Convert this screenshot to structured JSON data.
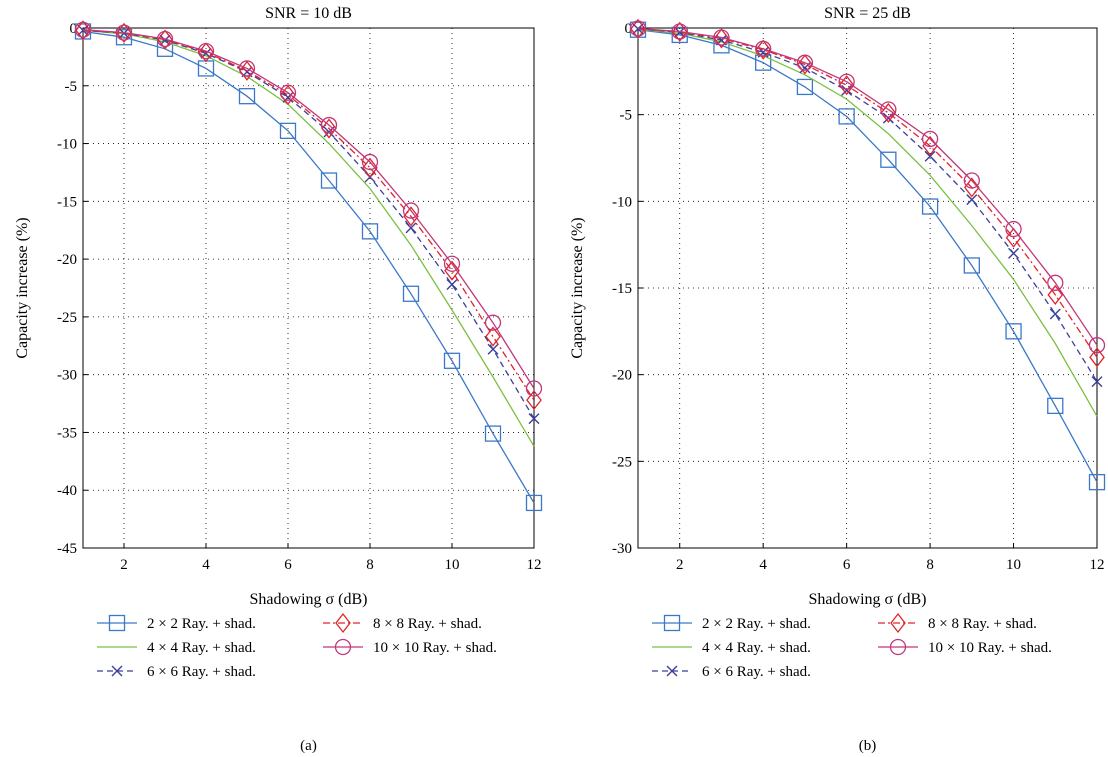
{
  "chart_data": [
    {
      "type": "line",
      "title": "SNR = 10 dB",
      "caption": "(a)",
      "xlabel": "Shadowing σ (dB)",
      "ylabel": "Capacity increase (%)",
      "xlim": [
        1,
        12
      ],
      "ylim": [
        -45,
        0
      ],
      "xticks": [
        2,
        4,
        6,
        8,
        10,
        12
      ],
      "yticks": [
        0,
        -5,
        -10,
        -15,
        -20,
        -25,
        -30,
        -35,
        -40,
        -45
      ],
      "grid": "dotted",
      "legend_position": "below",
      "x": [
        1,
        2,
        3,
        4,
        5,
        6,
        7,
        8,
        9,
        10,
        11,
        12
      ],
      "series": [
        {
          "name": "2 × 2 Ray. + shad.",
          "color": "#3a78c9",
          "dash": "solid",
          "marker": "square",
          "values": [
            -0.3,
            -0.8,
            -1.8,
            -3.5,
            -5.9,
            -8.9,
            -13.2,
            -17.6,
            -23.0,
            -28.8,
            -35.1,
            -41.1
          ]
        },
        {
          "name": "4 × 4 Ray. + shad.",
          "color": "#7ac143",
          "dash": "solid",
          "marker": "none",
          "values": [
            -0.2,
            -0.5,
            -1.2,
            -2.4,
            -4.2,
            -6.6,
            -10.0,
            -13.9,
            -18.8,
            -24.4,
            -30.2,
            -36.2
          ]
        },
        {
          "name": "6 × 6 Ray. + shad.",
          "color": "#3b3f9c",
          "dash": "dashed",
          "marker": "x",
          "values": [
            -0.2,
            -0.45,
            -1.05,
            -2.2,
            -3.8,
            -6.0,
            -9.0,
            -12.9,
            -17.3,
            -22.2,
            -27.8,
            -33.8
          ]
        },
        {
          "name": "8 × 8 Ray. + shad.",
          "color": "#e0242a",
          "dash": "dashdot",
          "marker": "diamond",
          "values": [
            -0.2,
            -0.42,
            -1.0,
            -2.1,
            -3.7,
            -5.8,
            -8.7,
            -12.1,
            -16.3,
            -21.0,
            -26.7,
            -32.2
          ]
        },
        {
          "name": "10 × 10 Ray. + shad.",
          "color": "#c2367a",
          "dash": "solid",
          "marker": "circle",
          "values": [
            -0.15,
            -0.4,
            -0.95,
            -2.0,
            -3.5,
            -5.6,
            -8.4,
            -11.6,
            -15.8,
            -20.4,
            -25.5,
            -31.2
          ]
        }
      ]
    },
    {
      "type": "line",
      "title": "SNR = 25 dB",
      "caption": "(b)",
      "xlabel": "Shadowing σ (dB)",
      "ylabel": "Capacity increase (%)",
      "xlim": [
        1,
        12
      ],
      "ylim": [
        -30,
        0
      ],
      "xticks": [
        2,
        4,
        6,
        8,
        10,
        12
      ],
      "yticks": [
        0,
        -5,
        -10,
        -15,
        -20,
        -25,
        -30
      ],
      "grid": "dotted",
      "legend_position": "below",
      "x": [
        1,
        2,
        3,
        4,
        5,
        6,
        7,
        8,
        9,
        10,
        11,
        12
      ],
      "series": [
        {
          "name": "2 × 2 Ray. + shad.",
          "color": "#3a78c9",
          "dash": "solid",
          "marker": "square",
          "values": [
            -0.1,
            -0.4,
            -1.0,
            -2.0,
            -3.4,
            -5.1,
            -7.6,
            -10.3,
            -13.7,
            -17.5,
            -21.8,
            -26.2
          ]
        },
        {
          "name": "4 × 4 Ray. + shad.",
          "color": "#7ac143",
          "dash": "solid",
          "marker": "none",
          "values": [
            -0.08,
            -0.3,
            -0.8,
            -1.6,
            -2.7,
            -4.1,
            -6.1,
            -8.5,
            -11.4,
            -14.5,
            -18.2,
            -22.4
          ]
        },
        {
          "name": "6 × 6 Ray. + shad.",
          "color": "#3b3f9c",
          "dash": "dashed",
          "marker": "x",
          "values": [
            -0.05,
            -0.25,
            -0.7,
            -1.4,
            -2.3,
            -3.6,
            -5.2,
            -7.4,
            -9.9,
            -13.0,
            -16.5,
            -20.4
          ]
        },
        {
          "name": "8 × 8 Ray. + shad.",
          "color": "#e0242a",
          "dash": "dashdot",
          "marker": "diamond",
          "values": [
            -0.05,
            -0.22,
            -0.6,
            -1.25,
            -2.1,
            -3.3,
            -4.9,
            -6.8,
            -9.2,
            -12.1,
            -15.4,
            -19.0
          ]
        },
        {
          "name": "10 × 10 Ray. + shad.",
          "color": "#c2367a",
          "dash": "solid",
          "marker": "circle",
          "values": [
            -0.03,
            -0.2,
            -0.55,
            -1.2,
            -2.0,
            -3.1,
            -4.7,
            -6.4,
            -8.8,
            -11.6,
            -14.7,
            -18.3
          ]
        }
      ]
    }
  ]
}
